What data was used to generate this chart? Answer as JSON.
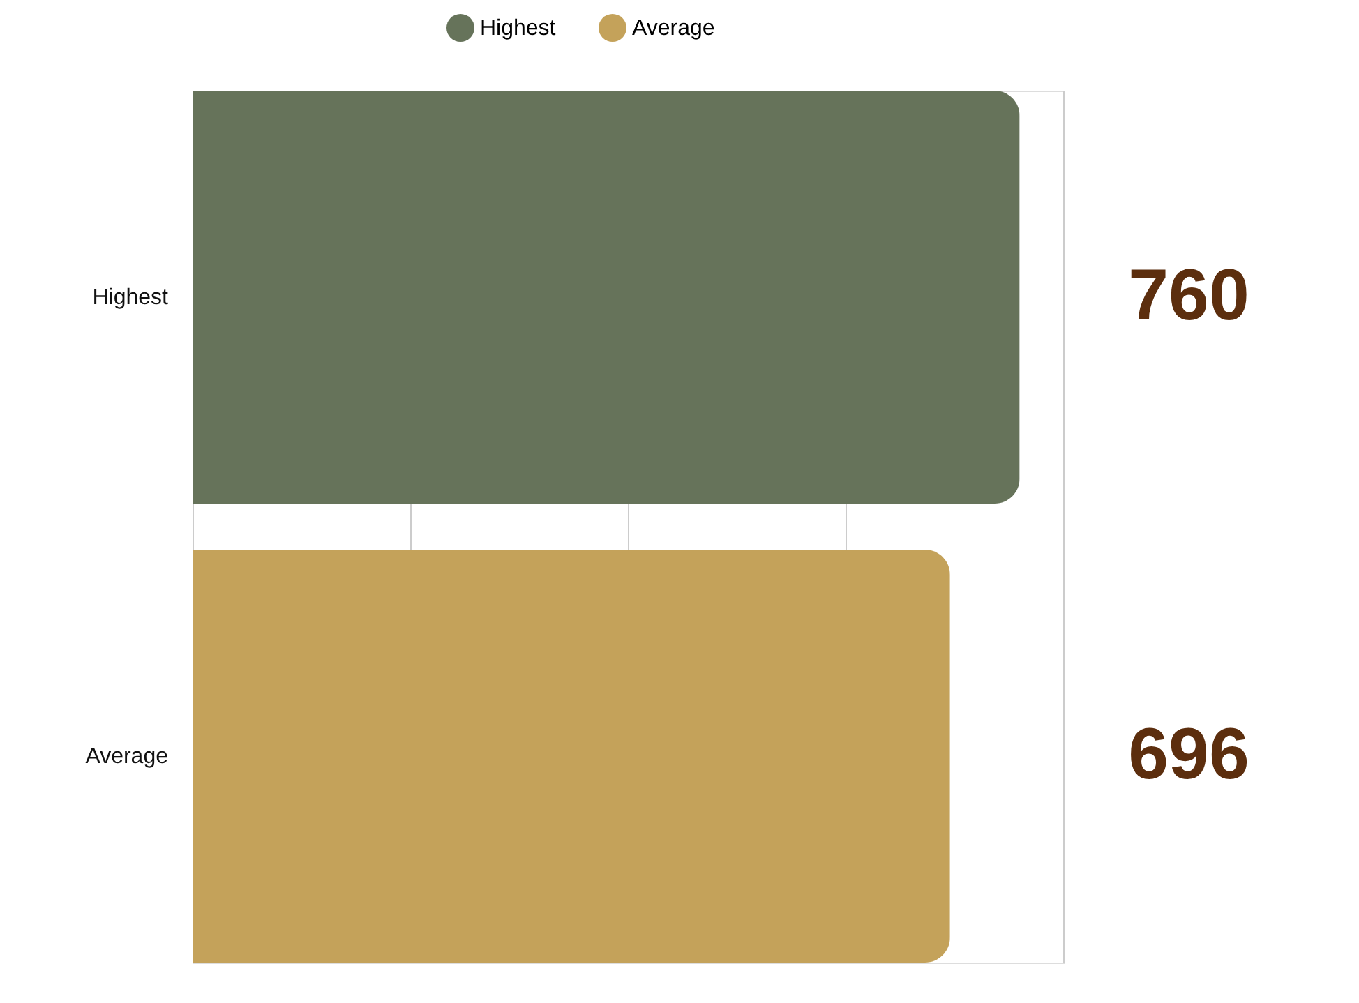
{
  "chart_data": {
    "type": "bar",
    "orientation": "horizontal",
    "stacked": true,
    "categories": [
      "Highest",
      "Average"
    ],
    "series": [
      {
        "name": "Highest",
        "color": "#66735a",
        "values": [
          760,
          null
        ]
      },
      {
        "name": "Average",
        "color": "#c4a25a",
        "values": [
          null,
          696
        ]
      }
    ],
    "xlim": [
      0,
      800
    ],
    "xticks": [
      0,
      200,
      400,
      600,
      800
    ],
    "grid": "x",
    "tick_labels": "y",
    "legend": "top",
    "data_labels": true
  }
}
